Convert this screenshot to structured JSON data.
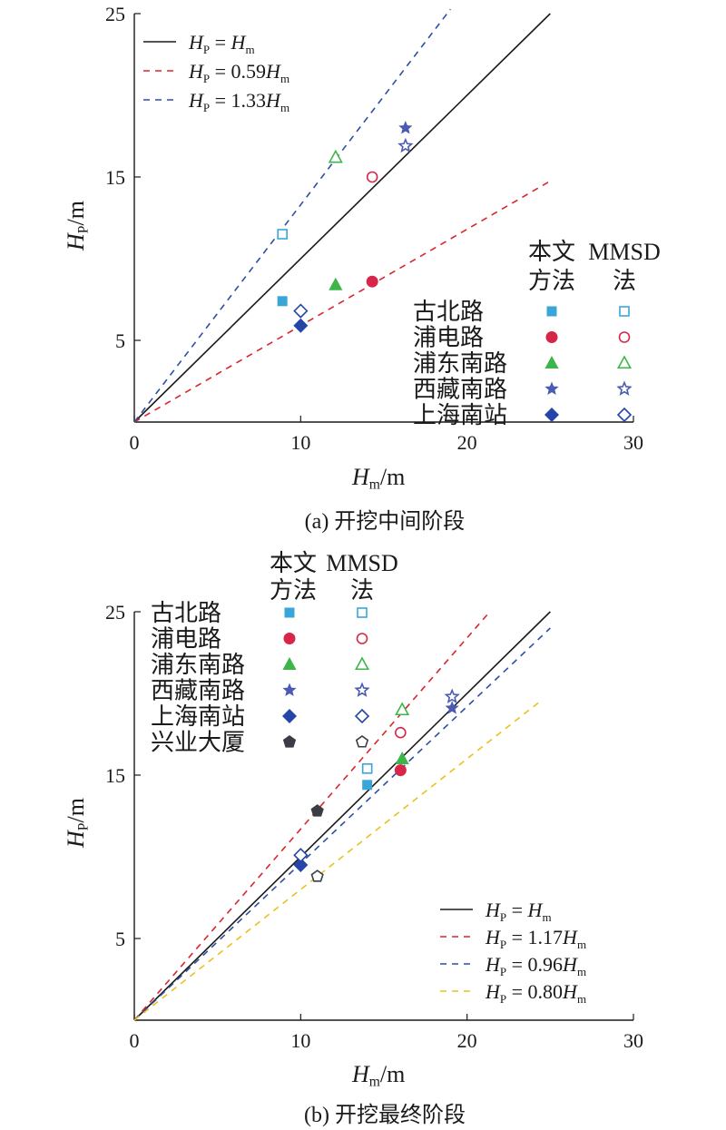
{
  "chart_data": [
    {
      "type": "scatter",
      "caption": "(a) 开挖中间阶段",
      "xlabel": {
        "main": "H",
        "sub": "m",
        "unit": "/m"
      },
      "ylabel": {
        "main": "H",
        "sub": "P",
        "unit": "/m"
      },
      "xlim": [
        0,
        30
      ],
      "ylim": [
        0,
        25
      ],
      "xticks": [
        "0",
        "10",
        "20",
        "30"
      ],
      "yticks": [
        "5",
        "15",
        "25"
      ],
      "xtick_values": [
        0,
        10,
        20,
        30
      ],
      "ytick_values": [
        5,
        15,
        25
      ],
      "lines": [
        {
          "label": {
            "left": "H",
            "lsub": "P",
            "mid": " = ",
            "coef": "",
            "right": "H",
            "rsub": "m"
          },
          "slope": 1.0,
          "x_end": 25,
          "color": "#1a1a1a",
          "dash": false
        },
        {
          "label": {
            "left": "H",
            "lsub": "P",
            "mid": " = ",
            "coef": "0.59",
            "right": "H",
            "rsub": "m"
          },
          "slope": 0.59,
          "x_end": 25,
          "color": "#d9262c",
          "dash": true
        },
        {
          "label": {
            "left": "H",
            "lsub": "P",
            "mid": " = ",
            "coef": "1.33",
            "right": "H",
            "rsub": "m"
          },
          "slope": 1.33,
          "x_end": 19,
          "color": "#2d4fa3",
          "dash": true
        }
      ],
      "method_headers": [
        {
          "top": "本文",
          "bottom": "方法"
        },
        {
          "top": "MMSD",
          "bottom": "法"
        }
      ],
      "sites": [
        {
          "name": "古北路",
          "marker": "square",
          "color": "#3aa6d8",
          "this_method": [
            8.9,
            7.4
          ],
          "mmsd": [
            8.9,
            11.5
          ]
        },
        {
          "name": "浦电路",
          "marker": "circle",
          "color": "#d7264a",
          "this_method": [
            14.3,
            8.6
          ],
          "mmsd": [
            14.3,
            15.0
          ]
        },
        {
          "name": "浦东南路",
          "marker": "triangle",
          "color": "#3db54a",
          "this_method": [
            12.1,
            8.4
          ],
          "mmsd": [
            12.1,
            16.2
          ]
        },
        {
          "name": "西藏南路",
          "marker": "star",
          "color": "#4b5bb4",
          "this_method": [
            16.3,
            18.0
          ],
          "mmsd": [
            16.3,
            16.9
          ]
        },
        {
          "name": "上海南站",
          "marker": "diamond",
          "color": "#2546a8",
          "this_method": [
            10.0,
            5.9
          ],
          "mmsd": [
            10.0,
            6.8
          ]
        }
      ]
    },
    {
      "type": "scatter",
      "caption": "(b) 开挖最终阶段",
      "xlabel": {
        "main": "H",
        "sub": "m",
        "unit": "/m"
      },
      "ylabel": {
        "main": "H",
        "sub": "P",
        "unit": "/m"
      },
      "xlim": [
        0,
        30
      ],
      "ylim": [
        0,
        25
      ],
      "xticks": [
        "0",
        "10",
        "20",
        "30"
      ],
      "yticks": [
        "5",
        "15",
        "25"
      ],
      "xtick_values": [
        0,
        10,
        20,
        30
      ],
      "ytick_values": [
        5,
        15,
        25
      ],
      "lines": [
        {
          "label": {
            "left": "H",
            "lsub": "P",
            "mid": " = ",
            "coef": "",
            "right": "H",
            "rsub": "m"
          },
          "slope": 1.0,
          "x_end": 25,
          "color": "#1a1a1a",
          "dash": false
        },
        {
          "label": {
            "left": "H",
            "lsub": "P",
            "mid": " = ",
            "coef": "1.17",
            "right": "H",
            "rsub": "m"
          },
          "slope": 1.17,
          "x_end": 21.3,
          "color": "#d9262c",
          "dash": true
        },
        {
          "label": {
            "left": "H",
            "lsub": "P",
            "mid": " = ",
            "coef": "0.96",
            "right": "H",
            "rsub": "m"
          },
          "slope": 0.96,
          "x_end": 25,
          "color": "#2d4fa3",
          "dash": true
        },
        {
          "label": {
            "left": "H",
            "lsub": "P",
            "mid": " = ",
            "coef": "0.80",
            "right": "H",
            "rsub": "m"
          },
          "slope": 0.8,
          "x_end": 24.5,
          "color": "#e8c21e",
          "dash": true
        }
      ],
      "method_headers": [
        {
          "top": "本文",
          "bottom": "方法"
        },
        {
          "top": "MMSD",
          "bottom": "法"
        }
      ],
      "sites": [
        {
          "name": "古北路",
          "marker": "square",
          "color": "#3aa6d8",
          "this_method": [
            14.0,
            14.4
          ],
          "mmsd": [
            14.0,
            15.4
          ]
        },
        {
          "name": "浦电路",
          "marker": "circle",
          "color": "#d7264a",
          "this_method": [
            16.0,
            15.3
          ],
          "mmsd": [
            16.0,
            17.6
          ]
        },
        {
          "name": "浦东南路",
          "marker": "triangle",
          "color": "#3db54a",
          "this_method": [
            16.1,
            16.0
          ],
          "mmsd": [
            16.1,
            19.0
          ]
        },
        {
          "name": "西藏南路",
          "marker": "star",
          "color": "#4b5bb4",
          "this_method": [
            19.1,
            19.1
          ],
          "mmsd": [
            19.1,
            19.8
          ]
        },
        {
          "name": "上海南站",
          "marker": "diamond",
          "color": "#2546a8",
          "this_method": [
            10.0,
            9.5
          ],
          "mmsd": [
            10.0,
            10.1
          ]
        },
        {
          "name": "兴业大厦",
          "marker": "pentagon",
          "color": "#3a3d45",
          "this_method": [
            11.0,
            12.8
          ],
          "mmsd": [
            11.0,
            8.8
          ]
        }
      ]
    }
  ]
}
